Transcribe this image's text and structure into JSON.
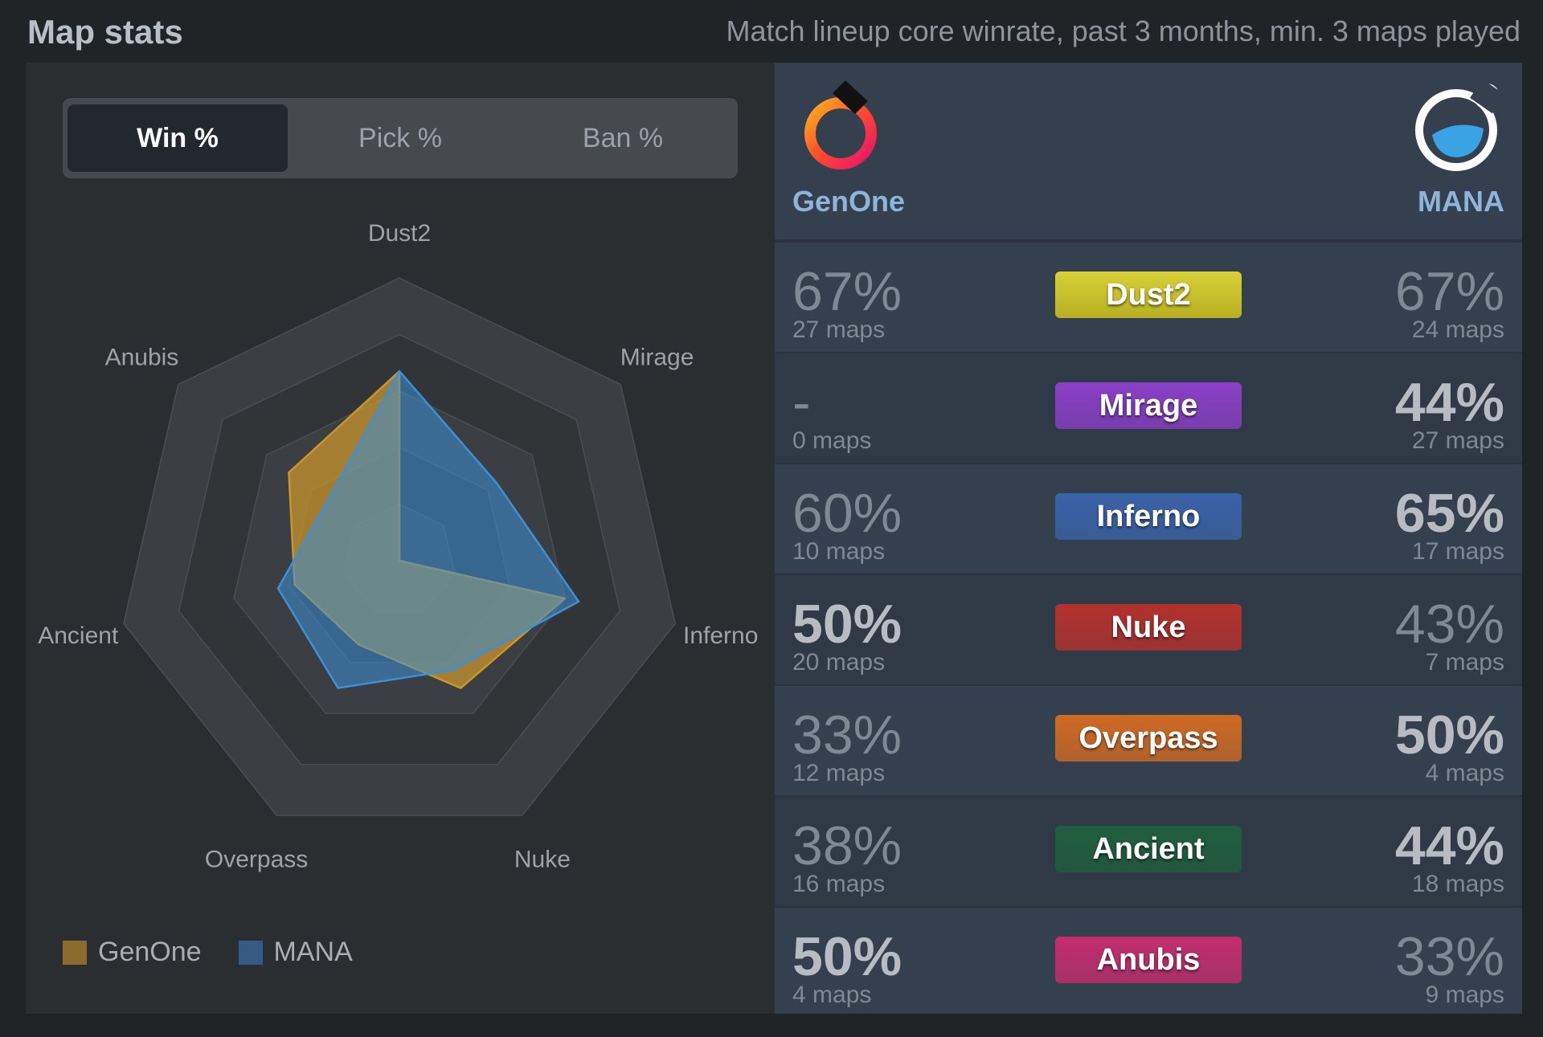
{
  "header": {
    "title": "Map stats",
    "subtitle": "Match lineup core winrate, past 3 months, min. 3 maps played"
  },
  "tabs": [
    {
      "label": "Win %",
      "active": true
    },
    {
      "label": "Pick %",
      "active": false
    },
    {
      "label": "Ban %",
      "active": false
    }
  ],
  "chart_data": {
    "type": "radar",
    "axes": [
      "Dust2",
      "Mirage",
      "Inferno",
      "Nuke",
      "Overpass",
      "Ancient",
      "Anubis"
    ],
    "range": [
      0,
      100
    ],
    "series": [
      {
        "name": "GenOne",
        "color": "#c9952c",
        "values": [
          67,
          0,
          60,
          50,
          33,
          38,
          50
        ]
      },
      {
        "name": "MANA",
        "color": "#3d8fd6",
        "values": [
          67,
          44,
          65,
          43,
          50,
          44,
          33
        ]
      }
    ],
    "legend_position": "bottom-left"
  },
  "legend": [
    {
      "name": "GenOne",
      "color": "#c9952c"
    },
    {
      "name": "MANA",
      "color": "#3d8fd6"
    }
  ],
  "teams": {
    "left": {
      "name": "GenOne",
      "icon": "genone-logo-icon"
    },
    "right": {
      "name": "MANA",
      "icon": "mana-logo-icon"
    }
  },
  "maps": [
    {
      "name": "Dust2",
      "color": "#c9c22b",
      "text_color": "#ffffff",
      "left": {
        "pct": "67%",
        "maps": "27 maps",
        "bold": false
      },
      "right": {
        "pct": "67%",
        "maps": "24 maps",
        "bold": false
      }
    },
    {
      "name": "Mirage",
      "color": "#8a3fc6",
      "text_color": "#ffffff",
      "left": {
        "pct": "-",
        "maps": "0 maps",
        "bold": false
      },
      "right": {
        "pct": "44%",
        "maps": "27 maps",
        "bold": true
      }
    },
    {
      "name": "Inferno",
      "color": "#3a62a8",
      "text_color": "#ffffff",
      "left": {
        "pct": "60%",
        "maps": "10 maps",
        "bold": false
      },
      "right": {
        "pct": "65%",
        "maps": "17 maps",
        "bold": true
      }
    },
    {
      "name": "Nuke",
      "color": "#b3312d",
      "text_color": "#ffffff",
      "left": {
        "pct": "50%",
        "maps": "20 maps",
        "bold": true
      },
      "right": {
        "pct": "43%",
        "maps": "7 maps",
        "bold": false
      }
    },
    {
      "name": "Overpass",
      "color": "#cf6a24",
      "text_color": "#ffffff",
      "left": {
        "pct": "33%",
        "maps": "12 maps",
        "bold": false
      },
      "right": {
        "pct": "50%",
        "maps": "4 maps",
        "bold": true
      }
    },
    {
      "name": "Ancient",
      "color": "#1f5e3e",
      "text_color": "#ffffff",
      "left": {
        "pct": "38%",
        "maps": "16 maps",
        "bold": false
      },
      "right": {
        "pct": "44%",
        "maps": "18 maps",
        "bold": true
      }
    },
    {
      "name": "Anubis",
      "color": "#c32d6e",
      "text_color": "#ffffff",
      "left": {
        "pct": "50%",
        "maps": "4 maps",
        "bold": true
      },
      "right": {
        "pct": "33%",
        "maps": "9 maps",
        "bold": false
      }
    }
  ]
}
